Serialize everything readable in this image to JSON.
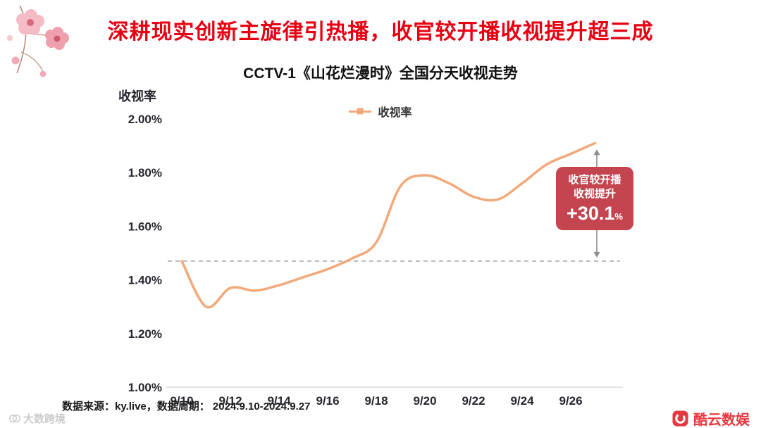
{
  "page": {
    "title": "深耕现实创新主旋律引热播，收官较开播收视提升超三成"
  },
  "chart_data": {
    "type": "line",
    "title": "CCTV-1《山花烂漫时》全国分天收视走势",
    "ylabel": "收视率",
    "legend": [
      "收视率"
    ],
    "legend_position": "top-center",
    "grid": false,
    "categories": [
      "9/10",
      "9/11",
      "9/12",
      "9/13",
      "9/14",
      "9/15",
      "9/16",
      "9/17",
      "9/18",
      "9/19",
      "9/20",
      "9/21",
      "9/22",
      "9/23",
      "9/24",
      "9/25",
      "9/26",
      "9/27"
    ],
    "x_tick_step": 2,
    "series": [
      {
        "name": "收视率",
        "values": [
          1.47,
          1.3,
          1.37,
          1.36,
          1.38,
          1.41,
          1.44,
          1.48,
          1.54,
          1.75,
          1.79,
          1.76,
          1.71,
          1.7,
          1.76,
          1.83,
          1.87,
          1.91
        ]
      }
    ],
    "ylim": [
      1.0,
      2.0
    ],
    "y_ticks": [
      {
        "label": "2.00%",
        "value": 2.0
      },
      {
        "label": "1.80%",
        "value": 1.8
      },
      {
        "label": "1.60%",
        "value": 1.6
      },
      {
        "label": "1.40%",
        "value": 1.4
      },
      {
        "label": "1.20%",
        "value": 1.2
      },
      {
        "label": "1.00%",
        "value": 1.0
      }
    ],
    "baseline_value": 1.47,
    "line_color": "#F2A97A",
    "annotation": {
      "line1": "收官较开播",
      "line2": "收视提升",
      "value": "+30.1",
      "unit": "%",
      "bg_color": "#C4454F"
    }
  },
  "footer": {
    "source": "数据来源：ky.live，数据周期： 2024.9.10-2024.9.27",
    "watermark": "大数跨境",
    "brand": "酷云数娱"
  },
  "colors": {
    "title_red": "#E60012",
    "brand_red": "#E6393F",
    "tick_text": "#26262E",
    "dash_gray": "#9B9B9B"
  }
}
